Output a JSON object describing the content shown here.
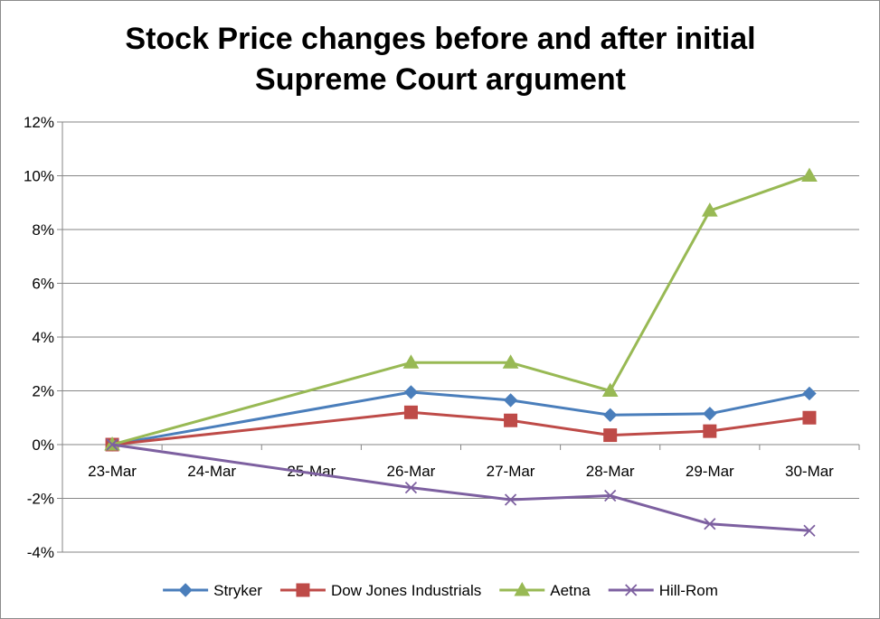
{
  "chart_data": {
    "type": "line",
    "title_lines": [
      "Stock Price changes before and after initial",
      "Supreme Court argument"
    ],
    "categories": [
      "23-Mar",
      "24-Mar",
      "25-Mar",
      "26-Mar",
      "27-Mar",
      "28-Mar",
      "29-Mar",
      "30-Mar"
    ],
    "y_ticks": [
      "12%",
      "10%",
      "8%",
      "6%",
      "4%",
      "2%",
      "0%",
      "-2%",
      "-4%"
    ],
    "ylim": [
      -4,
      12
    ],
    "y_unit": "%",
    "grid": "horizontal",
    "legend_position": "bottom",
    "series": [
      {
        "name": "Stryker",
        "color": "#4a7ebb",
        "marker": "diamond",
        "x": [
          0,
          3,
          4,
          5,
          6,
          7
        ],
        "values": [
          0,
          1.95,
          1.65,
          1.1,
          1.15,
          1.9
        ]
      },
      {
        "name": "Dow Jones Industrials",
        "color": "#be4b48",
        "marker": "square",
        "x": [
          0,
          3,
          4,
          5,
          6,
          7
        ],
        "values": [
          0,
          1.2,
          0.9,
          0.35,
          0.5,
          1.0
        ]
      },
      {
        "name": "Aetna",
        "color": "#98b954",
        "marker": "triangle",
        "x": [
          0,
          3,
          4,
          5,
          6,
          7
        ],
        "values": [
          0,
          3.05,
          3.05,
          2.0,
          8.7,
          10.0
        ]
      },
      {
        "name": "Hill-Rom",
        "color": "#7d60a0",
        "marker": "x",
        "x": [
          0,
          3,
          4,
          5,
          6,
          7
        ],
        "values": [
          0,
          -1.6,
          -2.05,
          -1.9,
          -2.95,
          -3.2
        ]
      }
    ]
  }
}
